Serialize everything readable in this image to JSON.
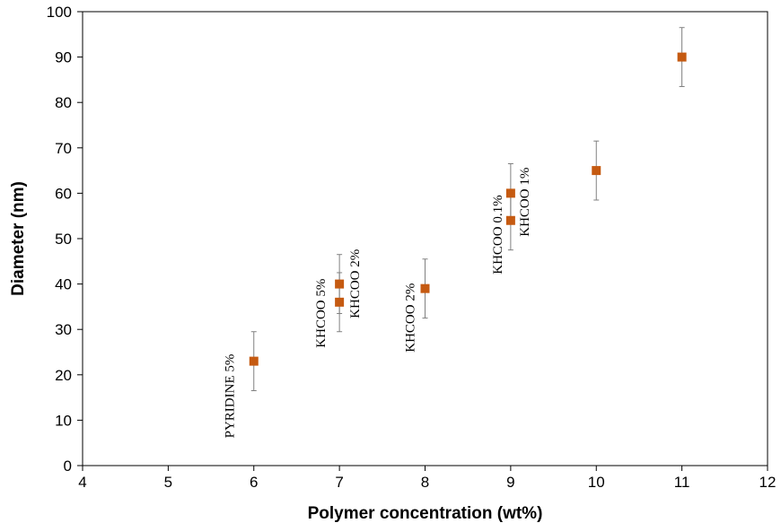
{
  "chart_data": {
    "type": "scatter",
    "title": "",
    "xlabel": "Polymer concentration (wt%)",
    "ylabel": "Diameter (nm)",
    "xlim": [
      4,
      12
    ],
    "ylim": [
      0,
      100
    ],
    "x_ticks": [
      4,
      5,
      6,
      7,
      8,
      9,
      10,
      11,
      12
    ],
    "y_ticks": [
      0,
      10,
      20,
      30,
      40,
      50,
      60,
      70,
      80,
      90,
      100
    ],
    "grid": false,
    "legend": "none",
    "marker_color": "#c55a11",
    "errorbar_color": "#808080",
    "points": [
      {
        "x": 6,
        "y": 23,
        "err_low": 6.5,
        "err_high": 6.5,
        "label": "PYRIDINE  5%"
      },
      {
        "x": 7,
        "y": 40,
        "err_low": 6.5,
        "err_high": 6.5,
        "label": "KHCOO  5%"
      },
      {
        "x": 7,
        "y": 36,
        "err_low": 6.5,
        "err_high": 6.5,
        "label": "KHCOO  2%"
      },
      {
        "x": 8,
        "y": 39,
        "err_low": 6.5,
        "err_high": 6.5,
        "label": "KHCOO  2%"
      },
      {
        "x": 9,
        "y": 60,
        "err_low": 6.5,
        "err_high": 6.5,
        "label": "KHCOO  0.1%"
      },
      {
        "x": 9,
        "y": 54,
        "err_low": 6.5,
        "err_high": 6.5,
        "label": "KHCOO  1%"
      },
      {
        "x": 10,
        "y": 65,
        "err_low": 6.5,
        "err_high": 6.5,
        "label": ""
      },
      {
        "x": 11,
        "y": 90,
        "err_low": 6.5,
        "err_high": 6.5,
        "label": ""
      }
    ]
  }
}
